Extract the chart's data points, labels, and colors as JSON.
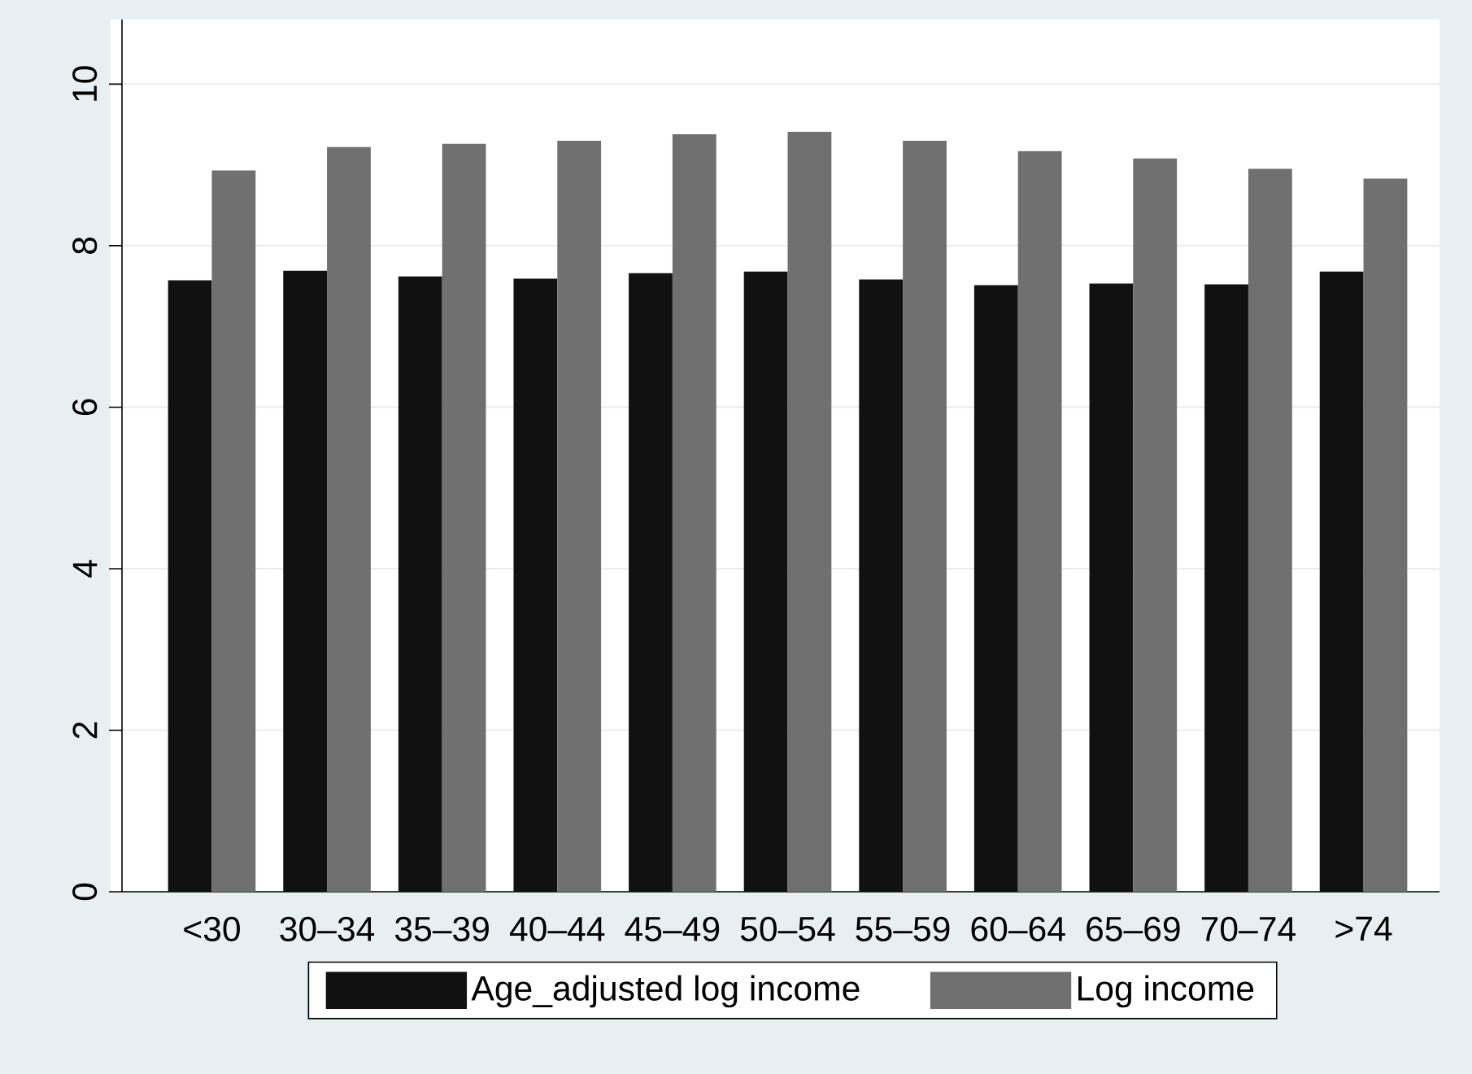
{
  "chart_data": {
    "type": "bar",
    "categories": [
      "<30",
      "30–34",
      "35–39",
      "40–44",
      "45–49",
      "50–54",
      "55–59",
      "60–64",
      "65–69",
      "70–74",
      ">74"
    ],
    "series": [
      {
        "name": "Age_adjusted log income",
        "color": "#111111",
        "values": [
          7.57,
          7.69,
          7.62,
          7.59,
          7.66,
          7.68,
          7.58,
          7.51,
          7.53,
          7.52,
          7.68
        ]
      },
      {
        "name": "Log income",
        "color": "#707070",
        "values": [
          8.93,
          9.22,
          9.26,
          9.3,
          9.38,
          9.41,
          9.3,
          9.17,
          9.08,
          8.95,
          8.83
        ]
      }
    ],
    "ylim": [
      0,
      10.8
    ],
    "yticks": [
      0,
      2,
      4,
      6,
      8,
      10
    ],
    "grid": "y",
    "legend": "bottom"
  }
}
